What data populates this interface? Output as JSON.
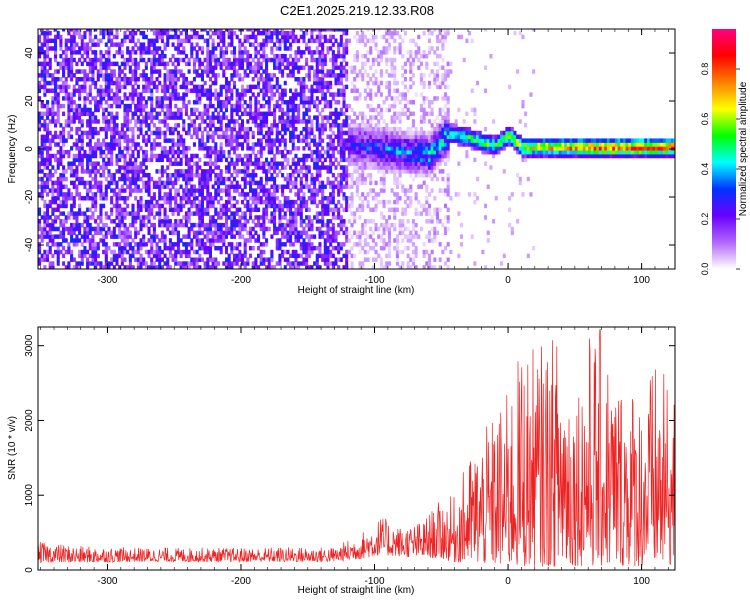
{
  "title": "C2E1.2025.219.12.33.R08",
  "chart_data": [
    {
      "type": "heatmap",
      "xlabel": "Height of straight line (km)",
      "ylabel": "Frequency (Hz)",
      "xlim": [
        -352,
        125
      ],
      "ylim": [
        -50,
        50
      ],
      "xticks": [
        -300,
        -200,
        -100,
        0,
        100
      ],
      "yticks": [
        -40,
        -20,
        0,
        20,
        40
      ],
      "colorbar": {
        "label": "Normalized spectral amplitude",
        "range": [
          0.0,
          0.96
        ],
        "ticks": [
          0.0,
          0.2,
          0.4,
          0.6,
          0.8
        ],
        "colormap": [
          "#ffffff",
          "#b266ff",
          "#6a00ff",
          "#0033ff",
          "#00ffff",
          "#00ff00",
          "#ffff00",
          "#ff8000",
          "#ff0000",
          "#ff0080"
        ]
      },
      "regions": [
        {
          "x_range": [
            -352,
            -120
          ],
          "freq_range": [
            -50,
            50
          ],
          "level_range": [
            0.08,
            0.3
          ],
          "pattern": "noise"
        },
        {
          "x_range": [
            -120,
            -45
          ],
          "freq_range": [
            -50,
            50
          ],
          "level_range": [
            0.02,
            0.1
          ],
          "pattern": "faint noise"
        },
        {
          "x_range": [
            -120,
            -45
          ],
          "freq_range": [
            -8,
            12
          ],
          "level_range": [
            0.1,
            0.5
          ],
          "pattern": "band"
        },
        {
          "x_range": [
            -45,
            125
          ],
          "freq_range": [
            -3,
            4
          ],
          "level_range": [
            0.3,
            0.95
          ],
          "pattern": "narrow band"
        }
      ],
      "ridge": {
        "x": [
          -120,
          -100,
          -80,
          -60,
          -45,
          -30,
          -20,
          -10,
          0,
          10,
          20,
          40,
          60,
          80,
          100,
          125
        ],
        "freq": [
          1,
          0,
          -2,
          -3,
          6,
          4,
          2,
          1,
          5,
          0,
          0,
          0,
          0,
          0,
          0,
          0
        ],
        "level": [
          0.3,
          0.35,
          0.4,
          0.45,
          0.55,
          0.6,
          0.65,
          0.6,
          0.7,
          0.75,
          0.8,
          0.85,
          0.9,
          0.92,
          0.95,
          0.95
        ]
      }
    },
    {
      "type": "line",
      "xlabel": "Height of straight line (km)",
      "ylabel": "SNR (10 * v/v)",
      "xlim": [
        -352,
        125
      ],
      "ylim": [
        0,
        3250
      ],
      "xticks": [
        -300,
        -200,
        -100,
        0,
        100
      ],
      "yticks": [
        0,
        1000,
        2000,
        3000
      ],
      "color": "#ee2222",
      "series": [
        {
          "x": [
            -352,
            -320,
            -280,
            -240,
            -200,
            -160,
            -130,
            -110,
            -95,
            -80,
            -65,
            -50,
            -40,
            -30,
            -20,
            -10,
            0,
            10,
            20,
            30,
            40,
            50,
            60,
            70,
            80,
            90,
            100,
            110,
            125
          ],
          "y_low": [
            100,
            100,
            110,
            110,
            110,
            110,
            110,
            150,
            200,
            180,
            170,
            150,
            100,
            100,
            80,
            60,
            50,
            40,
            40,
            50,
            40,
            60,
            50,
            40,
            50,
            60,
            40,
            50,
            60
          ],
          "y_high": [
            380,
            320,
            300,
            300,
            300,
            310,
            310,
            500,
            720,
            580,
            650,
            950,
            1000,
            1500,
            1800,
            2100,
            2400,
            3000,
            3000,
            3100,
            3200,
            2500,
            3200,
            3250,
            2600,
            2600,
            2400,
            2800,
            2400
          ]
        }
      ]
    }
  ]
}
